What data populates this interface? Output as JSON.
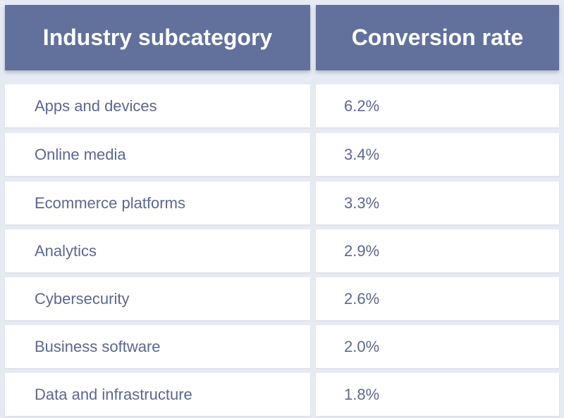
{
  "chart_data": {
    "type": "table",
    "columns": [
      "Industry subcategory",
      "Conversion rate"
    ],
    "rows": [
      {
        "subcategory": "Apps and devices",
        "rate": "6.2%"
      },
      {
        "subcategory": "Online media",
        "rate": "3.4%"
      },
      {
        "subcategory": "Ecommerce platforms",
        "rate": "3.3%"
      },
      {
        "subcategory": "Analytics",
        "rate": "2.9%"
      },
      {
        "subcategory": "Cybersecurity",
        "rate": "2.6%"
      },
      {
        "subcategory": "Business software",
        "rate": "2.0%"
      },
      {
        "subcategory": "Data and infrastructure",
        "rate": "1.8%"
      }
    ]
  },
  "colors": {
    "header_bg": "#62709c",
    "header_text": "#ffffff",
    "cell_bg": "#ffffff",
    "cell_text": "#5b6890",
    "page_bg": "#e6ebf3"
  }
}
